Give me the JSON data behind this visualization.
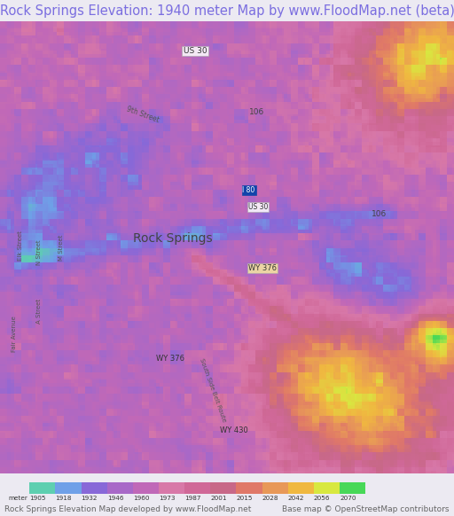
{
  "title": "Rock Springs Elevation: 1940 meter Map by www.FloodMap.net (beta)",
  "title_color": "#7b6ee0",
  "title_fontsize": 10.5,
  "background_color": "#eceaf2",
  "colorbar_values": [
    1905,
    1918,
    1932,
    1946,
    1960,
    1973,
    1987,
    2001,
    2015,
    2028,
    2042,
    2056,
    2070
  ],
  "colorbar_colors": [
    "#5ecfb0",
    "#6fa0e8",
    "#8868d8",
    "#a868c8",
    "#c068b8",
    "#d878a8",
    "#d06898",
    "#c86888",
    "#e07868",
    "#e89858",
    "#f0b840",
    "#d8e840",
    "#48d858"
  ],
  "footer_left": "Rock Springs Elevation Map developed by www.FloodMap.net",
  "footer_right": "Base map © OpenStreetMap contributors",
  "footer_color": "#666666",
  "footer_fontsize": 6.5
}
